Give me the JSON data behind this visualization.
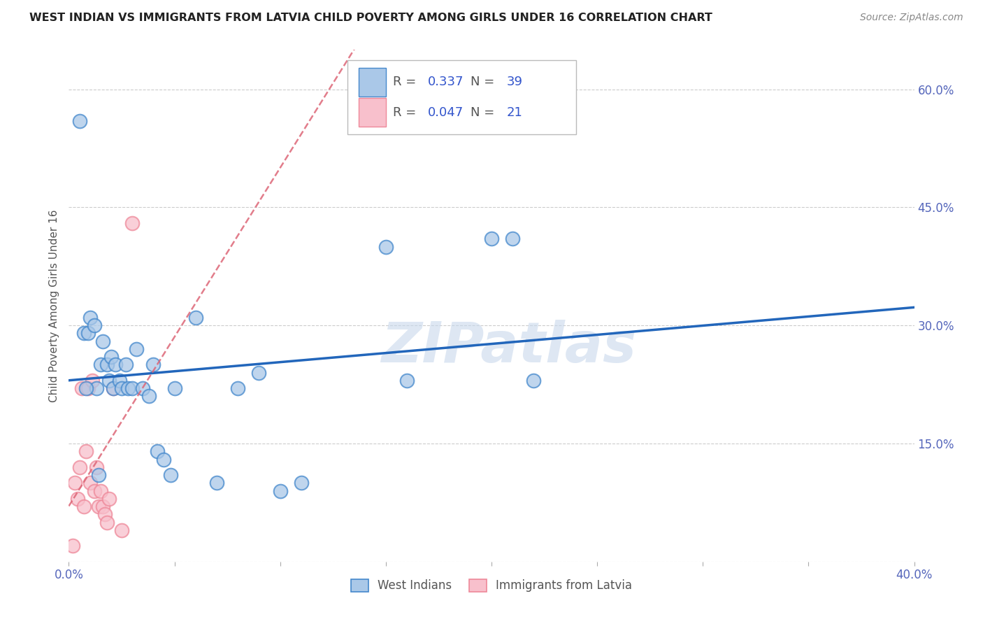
{
  "title": "WEST INDIAN VS IMMIGRANTS FROM LATVIA CHILD POVERTY AMONG GIRLS UNDER 16 CORRELATION CHART",
  "source": "Source: ZipAtlas.com",
  "ylabel": "Child Poverty Among Girls Under 16",
  "xlim": [
    0.0,
    0.4
  ],
  "ylim": [
    0.0,
    0.65
  ],
  "xticks": [
    0.0,
    0.05,
    0.1,
    0.15,
    0.2,
    0.25,
    0.3,
    0.35,
    0.4
  ],
  "xtick_labels": [
    "0.0%",
    "",
    "",
    "",
    "",
    "",
    "",
    "",
    "40.0%"
  ],
  "yticks": [
    0.0,
    0.15,
    0.3,
    0.45,
    0.6
  ],
  "ytick_labels_right": [
    "",
    "15.0%",
    "30.0%",
    "45.0%",
    "60.0%"
  ],
  "west_indian_x": [
    0.005,
    0.007,
    0.009,
    0.01,
    0.012,
    0.013,
    0.015,
    0.016,
    0.018,
    0.019,
    0.02,
    0.021,
    0.022,
    0.024,
    0.025,
    0.027,
    0.028,
    0.03,
    0.032,
    0.035,
    0.038,
    0.04,
    0.042,
    0.045,
    0.048,
    0.05,
    0.06,
    0.07,
    0.08,
    0.09,
    0.1,
    0.11,
    0.15,
    0.16,
    0.2,
    0.21,
    0.22,
    0.008,
    0.014
  ],
  "west_indian_y": [
    0.56,
    0.29,
    0.29,
    0.31,
    0.3,
    0.22,
    0.25,
    0.28,
    0.25,
    0.23,
    0.26,
    0.22,
    0.25,
    0.23,
    0.22,
    0.25,
    0.22,
    0.22,
    0.27,
    0.22,
    0.21,
    0.25,
    0.14,
    0.13,
    0.11,
    0.22,
    0.31,
    0.1,
    0.22,
    0.24,
    0.09,
    0.1,
    0.4,
    0.23,
    0.41,
    0.41,
    0.23,
    0.22,
    0.11
  ],
  "latvia_x": [
    0.002,
    0.003,
    0.004,
    0.005,
    0.006,
    0.007,
    0.008,
    0.009,
    0.01,
    0.011,
    0.012,
    0.013,
    0.014,
    0.015,
    0.016,
    0.017,
    0.018,
    0.019,
    0.021,
    0.025,
    0.03
  ],
  "latvia_y": [
    0.02,
    0.1,
    0.08,
    0.12,
    0.22,
    0.07,
    0.14,
    0.22,
    0.1,
    0.23,
    0.09,
    0.12,
    0.07,
    0.09,
    0.07,
    0.06,
    0.05,
    0.08,
    0.22,
    0.04,
    0.43
  ],
  "blue_color": "#aac8e8",
  "blue_edge_color": "#4488cc",
  "blue_line_color": "#2266bb",
  "pink_color": "#f8c0cc",
  "pink_edge_color": "#ee8899",
  "pink_line_color": "#dd6677",
  "R_blue": "0.337",
  "N_blue": "39",
  "R_pink": "0.047",
  "N_pink": "21",
  "watermark": "ZIPatlas",
  "background_color": "#ffffff",
  "grid_color": "#cccccc"
}
